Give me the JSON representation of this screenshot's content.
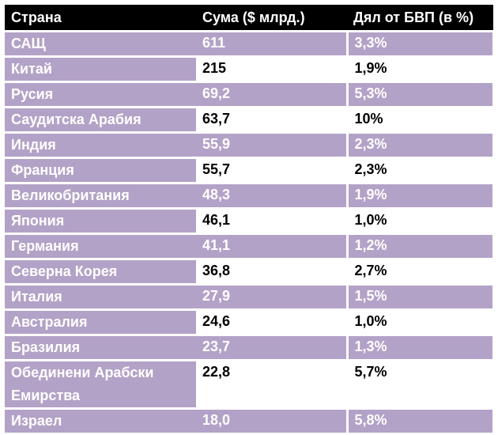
{
  "table": {
    "headers": [
      "Страна",
      "Сума ($ млрд.)",
      "Дял от БВП (в %)"
    ],
    "rows": [
      {
        "country": "САЩ",
        "amount": "611",
        "gdp_share": "3,3%",
        "shaded": true
      },
      {
        "country": "Китай",
        "amount": "215",
        "gdp_share": "1,9%",
        "shaded": false
      },
      {
        "country": "Русия",
        "amount": "69,2",
        "gdp_share": "5,3%",
        "shaded": true
      },
      {
        "country": "Саудитска Арабия",
        "amount": "63,7",
        "gdp_share": "10%",
        "shaded": false
      },
      {
        "country": "Индия",
        "amount": "55,9",
        "gdp_share": "2,3%",
        "shaded": true
      },
      {
        "country": "Франция",
        "amount": "55,7",
        "gdp_share": "2,3%",
        "shaded": false
      },
      {
        "country": "Великобритания",
        "amount": "48,3",
        "gdp_share": "1,9%",
        "shaded": true
      },
      {
        "country": "Япония",
        "amount": "46,1",
        "gdp_share": "1,0%",
        "shaded": false
      },
      {
        "country": "Германия",
        "amount": "41,1",
        "gdp_share": "1,2%",
        "shaded": true
      },
      {
        "country": "Северна Корея",
        "amount": "36,8",
        "gdp_share": "2,7%",
        "shaded": false
      },
      {
        "country": "Италия",
        "amount": "27,9",
        "gdp_share": "1,5%",
        "shaded": true
      },
      {
        "country": "Австралия",
        "amount": "24,6",
        "gdp_share": "1,0%",
        "shaded": false
      },
      {
        "country": "Бразилия",
        "amount": "23,7",
        "gdp_share": "1,3%",
        "shaded": true
      },
      {
        "country": "Обединени Арабски Емирства",
        "amount": "22,8",
        "gdp_share": "5,7%",
        "shaded": false
      },
      {
        "country": "Израел",
        "amount": "18,0",
        "gdp_share": "5,8%",
        "shaded": true
      }
    ]
  },
  "colors": {
    "header_bg": "#000000",
    "row_shade": "#b3a2c7",
    "row_plain": "#ffffff"
  }
}
